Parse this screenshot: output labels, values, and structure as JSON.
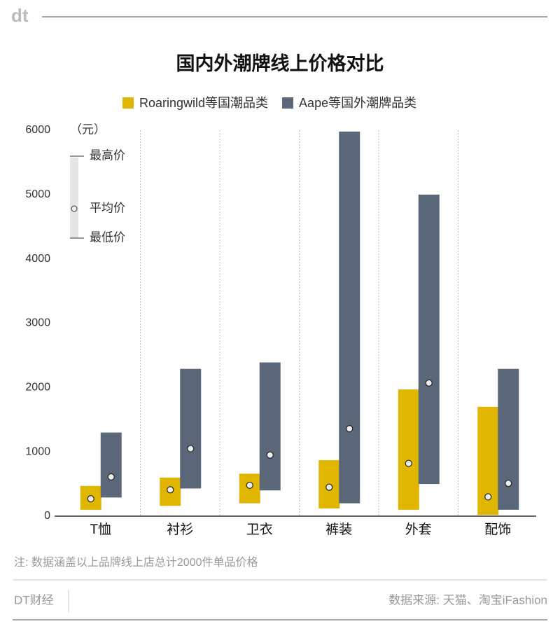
{
  "logo": "dt",
  "chart_data": {
    "type": "range_bar",
    "title": "国内外潮牌线上价格对比",
    "unit_label": "（元）",
    "inset_legend": {
      "max": "最高价",
      "avg": "平均价",
      "min": "最低价"
    },
    "categories": [
      "T恤",
      "衬衫",
      "卫衣",
      "裤装",
      "外套",
      "配饰"
    ],
    "series": [
      {
        "name": "Roaringwild等国潮品类",
        "color": "#e0b600",
        "low": [
          100,
          160,
          200,
          120,
          100,
          20
        ],
        "high": [
          470,
          600,
          660,
          870,
          1970,
          1700
        ],
        "avg": [
          270,
          410,
          480,
          450,
          820,
          300
        ]
      },
      {
        "name": "Aape等国外潮牌品类",
        "color": "#5a6779",
        "low": [
          290,
          430,
          400,
          200,
          500,
          100
        ],
        "high": [
          1300,
          2290,
          2390,
          5980,
          5000,
          2290
        ],
        "avg": [
          610,
          1050,
          950,
          1360,
          2070,
          510
        ]
      }
    ],
    "ylim": [
      0,
      6000
    ],
    "yticks": [
      0,
      1000,
      2000,
      3000,
      4000,
      5000,
      6000
    ],
    "grid": true
  },
  "note": "注: 数据涵盖以上品牌线上店总计2000件单品价格",
  "footer": {
    "brand": "DT财经",
    "source": "数据来源: 天猫、淘宝iFashion"
  }
}
